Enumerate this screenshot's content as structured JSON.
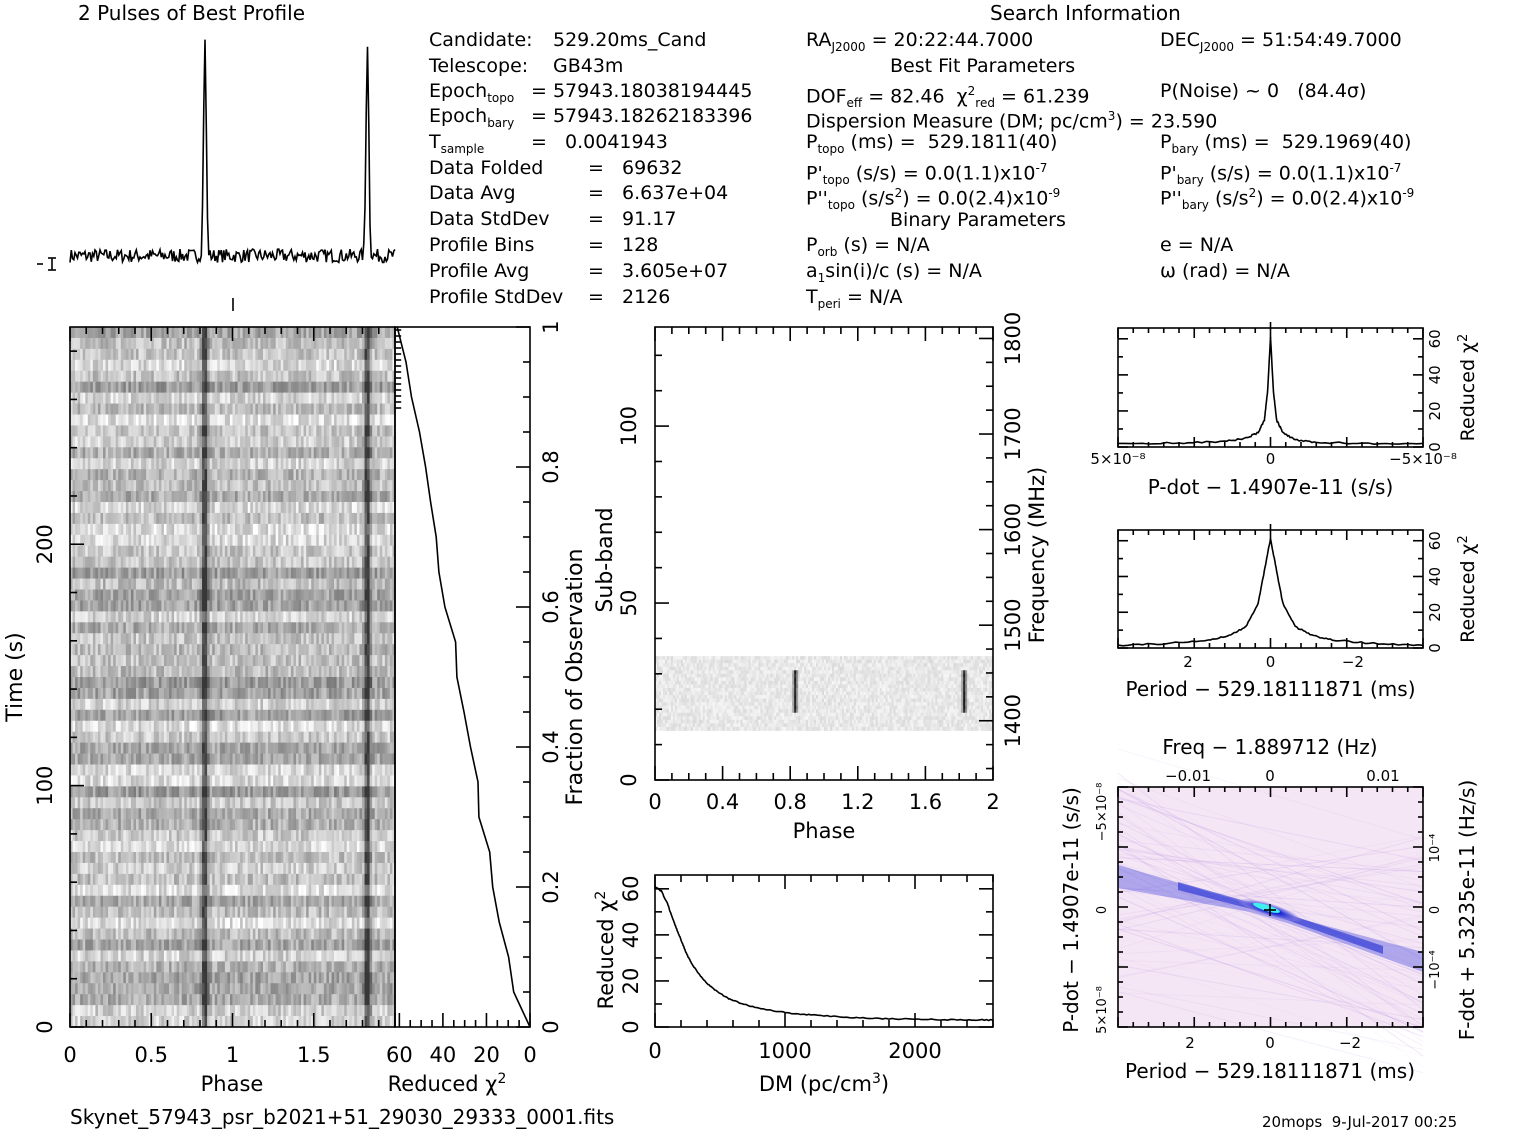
{
  "titles": {
    "profile": "2 Pulses of Best Profile",
    "search": "Search Information",
    "best_fit": "Best Fit Parameters",
    "binary": "Binary Parameters"
  },
  "info_col1": [
    {
      "label": "Candidate:",
      "value": "529.20ms_Cand"
    },
    {
      "label": "Telescope:",
      "value": "GB43m"
    },
    {
      "label": "Epoch",
      "sub": "topo",
      "value": "= 57943.18038194445"
    },
    {
      "label": "Epoch",
      "sub": "bary",
      "value": "= 57943.18262183396"
    },
    {
      "label": "T",
      "sub": "sample",
      "value": "=   0.0041943"
    },
    {
      "label": "Data Folded",
      "value": "=   69632"
    },
    {
      "label": "Data Avg",
      "value": "=   6.637e+04"
    },
    {
      "label": "Data StdDev",
      "value": "=   91.17"
    },
    {
      "label": "Profile Bins",
      "value": "=   128"
    },
    {
      "label": "Profile Avg",
      "value": "=   3.605e+07"
    },
    {
      "label": "Profile StdDev",
      "value": "=   2126"
    }
  ],
  "info_col2": {
    "ra": "RA",
    "ra_sub": "J2000",
    "ra_value": "= 20:22:44.7000",
    "dof": "DOF",
    "dof_sub": "eff",
    "dof_value": "= 82.46",
    "chi": "χ",
    "chi_sup": "2",
    "chi_sub": "red",
    "chi_value": "= 61.239",
    "dm_line": "Dispersion Measure (DM; pc/cm",
    "dm_sup": "3",
    "dm_value": ") = 23.590",
    "ptopo": "P",
    "ptopo_sub": "topo",
    "ptopo_value": "(ms) =  529.1811(40)",
    "pdtopo": "P'",
    "pdtopo_sub": "topo",
    "pdtopo_value": "(s/s) = 0.0(1.1)x10",
    "pdtopo_exp": "-7",
    "pddtopo": "P''",
    "pddtopo_sub": "topo",
    "pddtopo_value": "(s/s",
    "pddtopo_sup": "2",
    "pddtopo_value2": ") = 0.0(2.4)x10",
    "pddtopo_exp": "-9",
    "porb": "P",
    "porb_sub": "orb",
    "porb_value": "(s) = N/A",
    "a1": "a",
    "a1_sub": "1",
    "a1_value": "sin(i)/c (s) = N/A",
    "tperi": "T",
    "tperi_sub": "peri",
    "tperi_value": "= N/A"
  },
  "info_col3": {
    "dec": "DEC",
    "dec_sub": "J2000",
    "dec_value": "= 51:54:49.7000",
    "pnoise": "P(Noise) ~ 0   (84.4σ)",
    "pbary": "P",
    "pbary_sub": "bary",
    "pbary_value": "(ms) =  529.1969(40)",
    "pdbary": "P'",
    "pdbary_sub": "bary",
    "pdbary_value": "(s/s) = 0.0(1.1)x10",
    "pdbary_exp": "-7",
    "pddbary": "P''",
    "pddbary_sub": "bary",
    "pddbary_value": "(s/s",
    "pddbary_sup": "2",
    "pddbary_value2": ") = 0.0(2.4)x10",
    "pddbary_exp": "-9",
    "e": "e = N/A",
    "omega": "ω (rad) = N/A"
  },
  "footer": {
    "filename": "Skynet_57943_psr_b2021+51_29030_29333_0001.fits",
    "stamp": "20mops  9-Jul-2017 00:25"
  },
  "colors": {
    "ink": "#000000",
    "grey_dark": "#303030",
    "ppdot_bg": "#f5e6f5",
    "ppdot_mid": "#c8a8e8",
    "ppdot_blue": "#1020d0",
    "ppdot_cyan": "#40f0f0"
  },
  "chart_data": [
    {
      "type": "line",
      "name": "pulse_profile",
      "title": "2 Pulses of Best Profile",
      "xlabel": "",
      "ylabel": "",
      "x_range": [
        0,
        2
      ],
      "peaks_phase": [
        0.83,
        1.83
      ],
      "baseline_level": 0.05,
      "peak_level": 1.0,
      "error_bar": true
    },
    {
      "type": "heatmap",
      "name": "time_phase",
      "xlabel": "Phase",
      "ylabel": "Time (s)",
      "xlim": [
        0,
        2
      ],
      "ylim": [
        0,
        290
      ],
      "x_ticks": [
        "0",
        "0.5",
        "1",
        "1.5"
      ],
      "y_ticks": [
        "0",
        "100",
        "200"
      ],
      "pulse_phases": [
        0.83,
        1.83
      ],
      "n_rows": 64
    },
    {
      "type": "line",
      "name": "cumulative_chi2",
      "xlabel": "Reduced χ2",
      "ylabel": "Fraction of Observation",
      "xlim": [
        62,
        0
      ],
      "ylim": [
        0,
        1
      ],
      "x_ticks": [
        "60",
        "40",
        "20",
        "0"
      ],
      "y_ticks": [
        "0",
        "0.2",
        "0.4",
        "0.6",
        "0.8",
        "1"
      ],
      "fraction": [
        0,
        0.05,
        0.1,
        0.15,
        0.2,
        0.25,
        0.3,
        0.35,
        0.4,
        0.45,
        0.5,
        0.55,
        0.6,
        0.65,
        0.7,
        0.75,
        0.8,
        0.85,
        0.9,
        0.95,
        1.0
      ],
      "chi2": [
        0,
        6,
        9,
        13,
        16,
        19,
        22,
        25,
        27,
        30,
        33,
        35,
        38,
        41,
        43,
        46,
        49,
        52,
        55,
        58,
        61
      ]
    },
    {
      "type": "heatmap",
      "name": "subband_phase",
      "xlabel": "Phase",
      "ylabel": "Sub-band",
      "y2label": "Frequency (MHz)",
      "xlim": [
        0,
        2
      ],
      "ylim": [
        0,
        128
      ],
      "x_ticks": [
        "0",
        "0.4",
        "0.8",
        "1.2",
        "1.6",
        "2"
      ],
      "y_ticks": [
        "0",
        "50",
        "100"
      ],
      "y2_ticks": [
        "1400",
        "1500",
        "1600",
        "1700",
        "1800"
      ],
      "band_subbands": [
        14,
        35
      ],
      "pulse_phases": [
        0.83,
        1.83
      ]
    },
    {
      "type": "line",
      "name": "dm_curve",
      "xlabel": "DM (pc/cm3)",
      "ylabel": "Reduced χ2",
      "xlim": [
        0,
        2600
      ],
      "ylim": [
        0,
        66
      ],
      "x_ticks": [
        "0",
        "1000",
        "2000"
      ],
      "y_ticks": [
        "0",
        "20",
        "40",
        "60"
      ],
      "x": [
        0,
        50,
        100,
        150,
        200,
        250,
        300,
        400,
        500,
        600,
        800,
        1000,
        1200,
        1500,
        1800,
        2100,
        2400,
        2600
      ],
      "y": [
        61,
        59,
        53,
        45,
        38,
        31,
        26,
        19,
        14.5,
        11.5,
        8.2,
        6.3,
        5.2,
        4.2,
        3.6,
        3.3,
        3.1,
        3.0
      ]
    },
    {
      "type": "line",
      "name": "pdot_curve",
      "xlabel": "P-dot − 1.4907e-11 (s/s)",
      "ylabel": "Reduced χ2",
      "xlim": [
        5e-08,
        -5e-08
      ],
      "ylim": [
        0,
        66
      ],
      "x_ticks": [
        "5×10⁻⁸",
        "0",
        "−5×10⁻⁸"
      ],
      "y_ticks": [
        "0",
        "20",
        "40",
        "60"
      ],
      "x": [
        5e-08,
        3e-08,
        1.5e-08,
        8e-09,
        4e-09,
        2e-09,
        1e-09,
        0,
        -1e-09,
        -2e-09,
        -4e-09,
        -8e-09,
        -1.5e-08,
        -3e-08,
        -5e-08
      ],
      "y": [
        2,
        2.2,
        3,
        5,
        8,
        15,
        30,
        61,
        30,
        15,
        8,
        4,
        2.5,
        2,
        2
      ]
    },
    {
      "type": "line",
      "name": "period_curve",
      "xlabel": "Period − 529.18111871 (ms)",
      "ylabel": "Reduced χ2",
      "xlim": [
        3.7,
        -3.7
      ],
      "ylim": [
        0,
        66
      ],
      "x_ticks": [
        "2",
        "0",
        "−2"
      ],
      "y_ticks": [
        "0",
        "20",
        "40",
        "60"
      ],
      "x": [
        3.7,
        2.5,
        1.5,
        1.0,
        0.6,
        0.3,
        0.15,
        0,
        -0.15,
        -0.3,
        -0.6,
        -1.0,
        -1.5,
        -2.5,
        -3.7
      ],
      "y": [
        1.5,
        2.5,
        4.5,
        7,
        12,
        25,
        43,
        61,
        43,
        25,
        12,
        7,
        4.5,
        2.5,
        1.5
      ]
    },
    {
      "type": "heatmap",
      "name": "p_pdot_plane",
      "xlabel": "Period − 529.18111871 (ms)",
      "ylabel": "P-dot − 1.4907e-11 (s/s)",
      "x2label": "Freq − 1.889712 (Hz)",
      "y2label": "F-dot + 5.3235e-11 (Hz/s)",
      "xlim": [
        3.7,
        -3.7
      ],
      "ylim": [
        5e-08,
        -5e-08
      ],
      "x_ticks": [
        "2",
        "0",
        "−2"
      ],
      "x2_ticks": [
        "−0.01",
        "0",
        "0.01"
      ],
      "y_ticks": [
        "5×10⁻⁸",
        "0",
        "−5×10⁻⁸"
      ],
      "y2_ticks": [
        "−10⁻⁴",
        "0",
        "10⁻⁴"
      ],
      "best": [
        0,
        0
      ]
    }
  ]
}
